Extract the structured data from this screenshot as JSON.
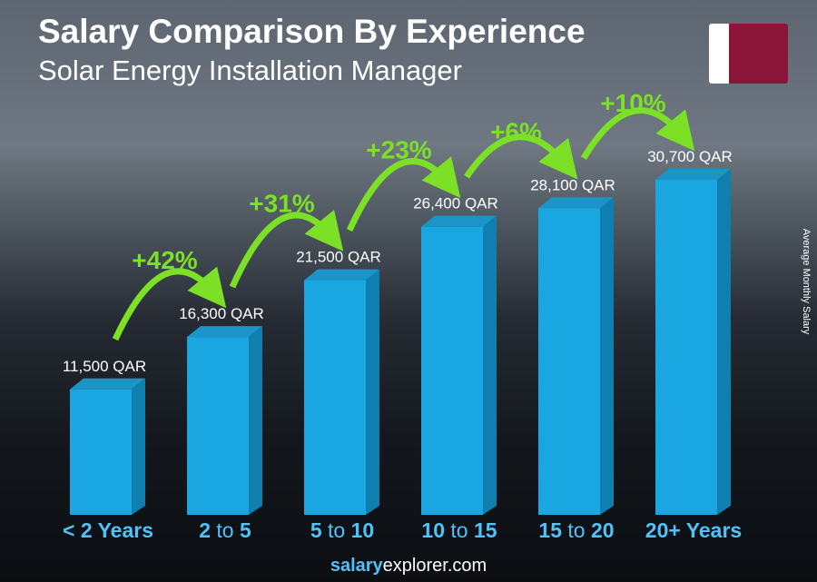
{
  "title": "Salary Comparison By Experience",
  "subtitle": "Solar Energy Installation Manager",
  "y_axis_label": "Average Monthly Salary",
  "footer": {
    "brand_bold": "salary",
    "brand_rest": "explorer",
    "domain": ".com"
  },
  "colors": {
    "bar_front": "#1aa6e0",
    "bar_side": "#0f7fb0",
    "bar_top": "#1b94c8",
    "accent_green": "#7be026",
    "label_blue": "#4fc3f7"
  },
  "chart_data": {
    "type": "bar",
    "title": "Salary Comparison By Experience",
    "subtitle": "Solar Energy Installation Manager",
    "ylabel": "Average Monthly Salary",
    "categories": [
      [
        "< 2 Years",
        "",
        ""
      ],
      [
        "2",
        "to",
        "5"
      ],
      [
        "5",
        "to",
        "10"
      ],
      [
        "10",
        "to",
        "15"
      ],
      [
        "15",
        "to",
        "20"
      ],
      [
        "20+ Years",
        "",
        ""
      ]
    ],
    "values": [
      11500,
      16300,
      21500,
      26400,
      28100,
      30700
    ],
    "value_labels": [
      "11,500 QAR",
      "16,300 QAR",
      "21,500 QAR",
      "26,400 QAR",
      "28,100 QAR",
      "30,700 QAR"
    ],
    "increase_labels": [
      "+42%",
      "+31%",
      "+23%",
      "+6%",
      "+10%"
    ],
    "unit": "QAR",
    "ylim": [
      0,
      30700
    ]
  }
}
